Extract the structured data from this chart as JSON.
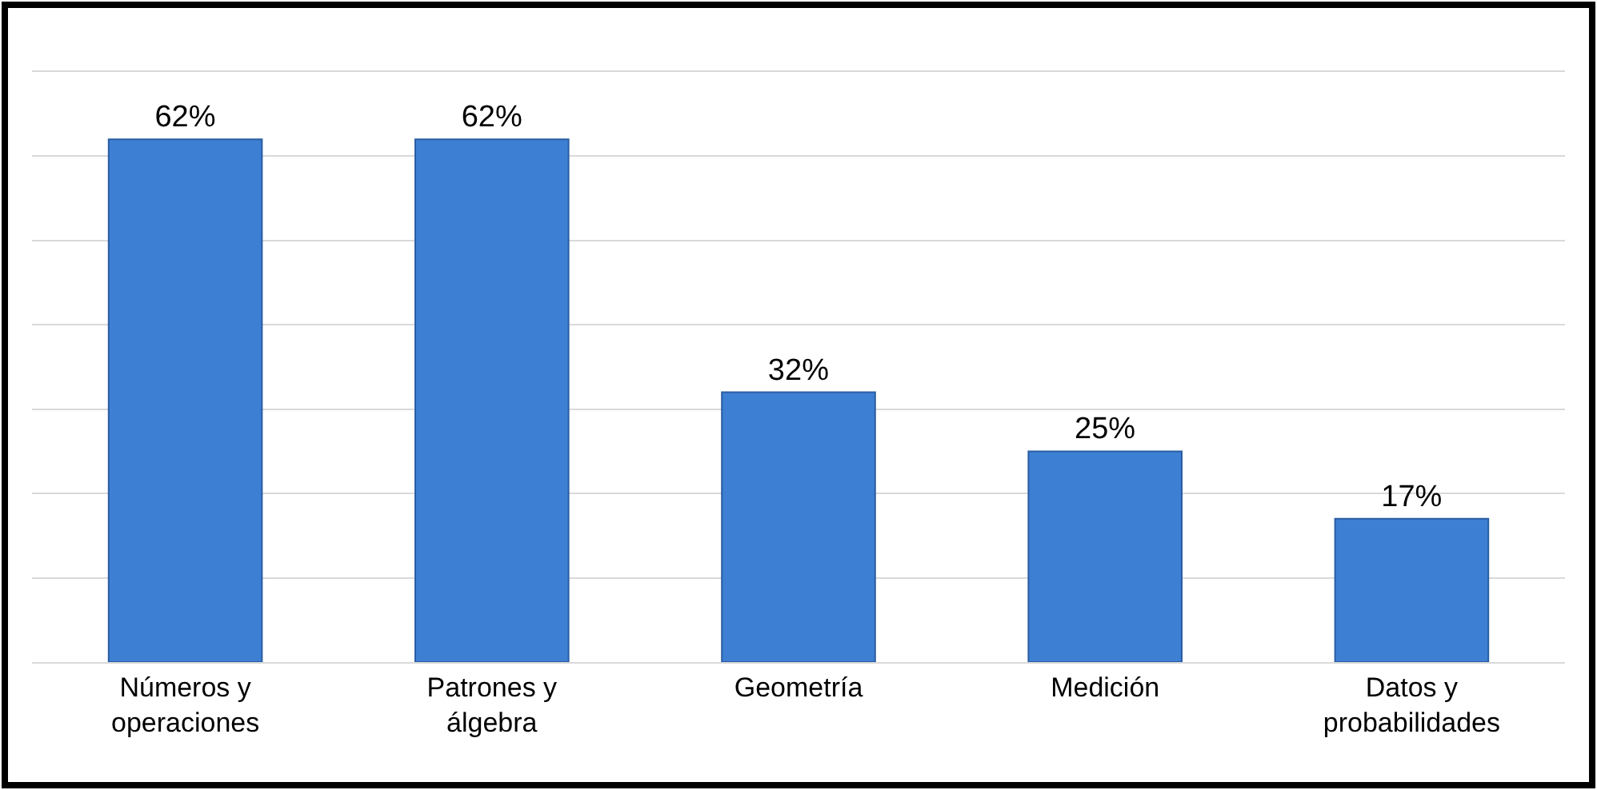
{
  "chart_data": {
    "type": "bar",
    "categories": [
      "Números y\noperaciones",
      "Patrones y\nálgebra",
      "Geometría",
      "Medición",
      "Datos y\nprobabilidades"
    ],
    "values": [
      62,
      62,
      32,
      25,
      17
    ],
    "color": "#3d7fd3",
    "value_labels": [
      "62%",
      "62%",
      "32%",
      "25%",
      "17%"
    ],
    "ylim": [
      0,
      70
    ],
    "yticks": [
      {
        "value": 0,
        "label": null
      },
      {
        "value": 10,
        "label": null
      },
      {
        "value": 20,
        "label": null
      },
      {
        "value": 30,
        "label": null
      },
      {
        "value": 40,
        "label": null
      },
      {
        "value": 50,
        "label": null
      },
      {
        "value": 60,
        "label": null
      },
      {
        "value": 70,
        "label": null
      }
    ],
    "grid": "y",
    "legend": false
  }
}
